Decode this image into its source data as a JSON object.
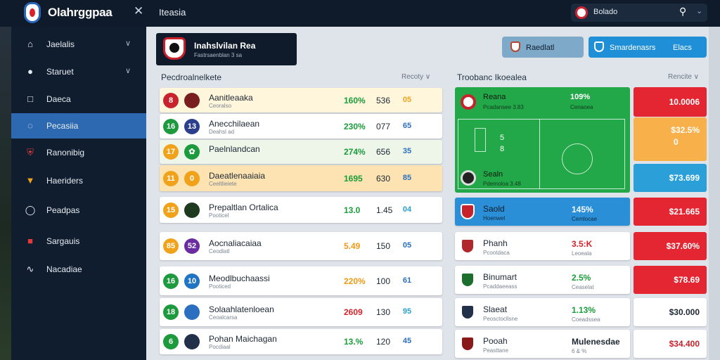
{
  "topbar": {
    "app_title": "Olahrggpaa",
    "close_glyph": "✕",
    "tab_title": "Iteasia",
    "search": {
      "value": "Bolado",
      "icon": "search-icon"
    }
  },
  "sidebar": {
    "items": [
      {
        "label": "Jaelalis",
        "icon": "home-icon",
        "chevron": "∨"
      },
      {
        "label": "Staruet",
        "icon": "user-icon",
        "chevron": "∨"
      },
      {
        "label": "Daeca",
        "icon": "square-icon",
        "chevron": ""
      },
      {
        "label": "Pecasiia",
        "icon": "ball-icon",
        "chevron": "",
        "active": true
      },
      {
        "label": "Ranonibig",
        "icon": "shield-icon",
        "chevron": ""
      },
      {
        "label": "Haeriders",
        "icon": "trophy-icon",
        "chevron": ""
      },
      {
        "label": "Peadpas",
        "icon": "badge-icon",
        "chevron": ""
      },
      {
        "label": "Sargauis",
        "icon": "flag-icon",
        "chevron": ""
      },
      {
        "label": "Nacadiae",
        "icon": "wave-icon",
        "chevron": ""
      }
    ]
  },
  "header_card": {
    "title": "Inahslvilan Rea",
    "subtitle": "Fastrsaenblan 3 sa"
  },
  "buttons": {
    "a_label": "Raedlatl",
    "b_label": "Smardenasrs",
    "b_suffix": "Elacs"
  },
  "left_section": {
    "title": "Pecdroalnelkete",
    "sort": "Recoty ∨"
  },
  "right_section": {
    "title": "Troobanc Ikoealea",
    "sort": "Rencite ∨"
  },
  "rows": [
    {
      "num": "8",
      "num_color": "#c8232c",
      "badge": "",
      "badge_color": "#7a1f1f",
      "name": "Aanitleaaka",
      "sub": "Ceoralso",
      "pct": "160%",
      "pct_color": "#1b9c3a",
      "pts": "536",
      "tag": "05",
      "tag_color": "#f0a21a",
      "bg": "#fff6dc"
    },
    {
      "num": "16",
      "num_color": "#1c9a3d",
      "badge": "13",
      "badge_color": "#2b3f8c",
      "name": "Anecchilaean",
      "sub": "Deahsl ad",
      "pct": "230%",
      "pct_color": "#1b9c3a",
      "pts": "077",
      "tag": "65",
      "tag_color": "#2a6fc0",
      "bg": "#ffffff"
    },
    {
      "num": "17",
      "num_color": "#f0a21a",
      "badge": "✿",
      "badge_color": "#1c9a3d",
      "name": "Paelnlandcan",
      "sub": "",
      "pct": "274%",
      "pct_color": "#1b9c3a",
      "pts": "656",
      "tag": "35",
      "tag_color": "#2a6fc0",
      "bg": "#eef6ea"
    },
    {
      "num": "11",
      "num_color": "#f0a21a",
      "badge": "0",
      "badge_color": "#f0a21a",
      "name": "Daeatlenaaiaia",
      "sub": "Ceeltlieiete",
      "pct": "1695",
      "pct_color": "#1b9c3a",
      "pts": "630",
      "tag": "85",
      "tag_color": "#2a6fc0",
      "bg": "#fde3b2"
    },
    {
      "num": "15",
      "num_color": "#f0a21a",
      "badge": "",
      "badge_color": "#1f3b1f",
      "name": "Prepaltlan Ortalica",
      "sub": "Pooticel",
      "pct": "13.0",
      "pct_color": "#1b9c3a",
      "pts": "1.45",
      "tag": "04",
      "tag_color": "#2a9fd0",
      "bg": "#ffffff"
    },
    {
      "num": "85",
      "num_color": "#f0a21a",
      "badge": "52",
      "badge_color": "#6a2ca0",
      "name": "Aocnaliacaiaa",
      "sub": "Ceodlatl",
      "pct": "5.49",
      "pct_color": "#f09a18",
      "pts": "150",
      "tag": "05",
      "tag_color": "#2a6fc0",
      "bg": "#ffffff"
    },
    {
      "num": "16",
      "num_color": "#1c9a3d",
      "badge": "10",
      "badge_color": "#1f74c4",
      "name": "Meodlbuchaassi",
      "sub": "Pooticed",
      "pct": "220%",
      "pct_color": "#f09a18",
      "pts": "100",
      "tag": "61",
      "tag_color": "#2a6fc0",
      "bg": "#ffffff"
    },
    {
      "num": "18",
      "num_color": "#1c9a3d",
      "badge": "",
      "badge_color": "#2a6fc0",
      "name": "Solaahlatenloean",
      "sub": "Ceoalcarsa",
      "pct": "2609",
      "pct_color": "#d8232c",
      "pts": "130",
      "tag": "95",
      "tag_color": "#2a9fd0",
      "bg": "#ffffff"
    },
    {
      "num": "6",
      "num_color": "#1c9a3d",
      "badge": "",
      "badge_color": "#22304a",
      "name": "Pohan Maichagan",
      "sub": "Pocdiaal",
      "pct": "13.%",
      "pct_color": "#1b9c3a",
      "pts": "120",
      "tag": "45",
      "tag_color": "#2a6fc0",
      "bg": "#ffffff"
    }
  ],
  "pitch": {
    "top_name": "Reana",
    "top_sub": "Pcadansee 3.83",
    "top_pct": "109%",
    "top_sub2": "Cenaoea",
    "score_a": "5",
    "score_b": "8",
    "bottom_name": "Sealn",
    "bottom_sub": "Pdemoloa 3.48"
  },
  "cards": [
    {
      "name": "Saold",
      "sub": "Hoenwel",
      "pct": "145%",
      "pct_color": "#f4f8ff",
      "sub2": "Cemlocae",
      "crest_color": "#c8232c",
      "blue": true
    },
    {
      "name": "Phanh",
      "sub": "Pcootdaca",
      "pct": "3.5:K",
      "pct_color": "#d8232c",
      "sub2": "Leoeala",
      "crest_color": "#b1282c",
      "blue": false
    },
    {
      "name": "Binumart",
      "sub": "Pcaddaeeass",
      "pct": "2.5%",
      "pct_color": "#1b9c3a",
      "sub2": "Ceaselat",
      "crest_color": "#1c6e2c",
      "blue": false
    },
    {
      "name": "Slaeat",
      "sub": "Peosctocllsne",
      "pct": "1.13%",
      "pct_color": "#1b9c3a",
      "sub2": "Coeadssea",
      "crest_color": "#22304a",
      "blue": false
    },
    {
      "name": "Pooah",
      "sub": "Peasttane",
      "pct": "Mulenesdae",
      "pct_color": "#1c2733",
      "sub2": "6 & %",
      "crest_color": "#8a1a1a",
      "blue": false
    }
  ],
  "odds": [
    {
      "value": "10.0006",
      "bg": "#e32632",
      "color": "#ffffff"
    },
    {
      "value": "$32.5%",
      "bg": "#f8b04a",
      "color": "#ffffff"
    },
    {
      "value": "$73.699",
      "bg": "#2a9fd8",
      "color": "#ffffff"
    },
    {
      "value": "$21.665",
      "bg": "#e32632",
      "color": "#ffffff"
    },
    {
      "value": "$37.60%",
      "bg": "#e32632",
      "color": "#ffffff"
    },
    {
      "value": "$78.69",
      "bg": "#e32632",
      "color": "#ffffff"
    },
    {
      "value": "$30.000",
      "bg": "#ffffff",
      "color": "#1c2733"
    },
    {
      "value": "$34.400",
      "bg": "#ffffff",
      "color": "#c8232c"
    }
  ],
  "odds_extra": "0"
}
